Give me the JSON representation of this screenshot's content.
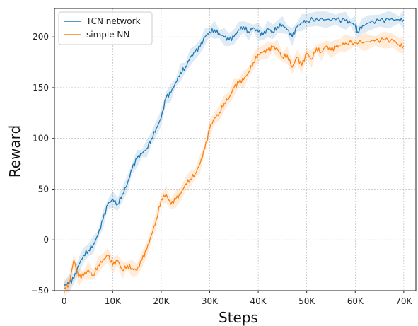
{
  "chart_data": {
    "type": "line",
    "xlabel": "Steps",
    "ylabel": "Reward",
    "xlim": [
      -2000,
      72500
    ],
    "ylim": [
      -50,
      228
    ],
    "xticks": [
      0,
      10000,
      20000,
      30000,
      40000,
      50000,
      60000,
      70000
    ],
    "xtick_labels": [
      "0",
      "10K",
      "20K",
      "30K",
      "40K",
      "50K",
      "60K",
      "70K"
    ],
    "yticks": [
      -50,
      0,
      50,
      100,
      150,
      200
    ],
    "ytick_labels": [
      "−50",
      "0",
      "50",
      "100",
      "150",
      "200"
    ],
    "grid": true,
    "legend_position": "upper-left",
    "series": [
      {
        "name": "TCN network",
        "color": "#1f77b4",
        "x": [
          0,
          1000,
          2000,
          3000,
          4000,
          5000,
          6000,
          7000,
          8000,
          9000,
          10000,
          11000,
          12000,
          13000,
          14000,
          15000,
          16000,
          17000,
          18000,
          19000,
          20000,
          21000,
          22000,
          23000,
          24000,
          25000,
          26000,
          27000,
          28000,
          29000,
          30000,
          31000,
          32000,
          33000,
          34000,
          35000,
          36000,
          37000,
          38000,
          39000,
          40000,
          41000,
          42000,
          43000,
          44000,
          45000,
          46000,
          47000,
          48000,
          49000,
          50000,
          52000,
          54000,
          56000,
          58000,
          59000,
          60000,
          60500,
          61500,
          63000,
          65000,
          67000,
          69000,
          70000
        ],
        "y": [
          -45,
          -43,
          -38,
          -25,
          -15,
          -10,
          -5,
          5,
          20,
          35,
          40,
          35,
          45,
          55,
          70,
          80,
          85,
          90,
          100,
          110,
          120,
          140,
          145,
          155,
          165,
          170,
          180,
          185,
          190,
          200,
          205,
          207,
          203,
          200,
          197,
          200,
          207,
          210,
          205,
          209,
          205,
          202,
          208,
          205,
          210,
          212,
          207,
          200,
          210,
          214,
          216,
          218,
          217,
          217,
          216,
          214,
          212,
          205,
          211,
          214,
          216,
          217,
          217,
          217
        ]
      },
      {
        "name": "simple NN",
        "color": "#ff7f0e",
        "x": [
          0,
          1000,
          2000,
          3000,
          4000,
          5000,
          6000,
          7000,
          8000,
          9000,
          10000,
          11000,
          12000,
          13000,
          14000,
          15000,
          16000,
          17000,
          18000,
          19000,
          20000,
          21000,
          22000,
          23000,
          24000,
          25000,
          26000,
          27000,
          28000,
          29000,
          30000,
          31000,
          32000,
          33000,
          34000,
          35000,
          36000,
          37000,
          38000,
          39000,
          40000,
          41000,
          42000,
          43000,
          44000,
          45000,
          46000,
          47000,
          48000,
          49000,
          50000,
          51000,
          52000,
          53000,
          54000,
          55000,
          56000,
          57000,
          58000,
          60000,
          62000,
          64000,
          66000,
          68000,
          69000,
          70000
        ],
        "y": [
          -47,
          -44,
          -20,
          -37,
          -35,
          -30,
          -35,
          -25,
          -20,
          -15,
          -25,
          -20,
          -30,
          -25,
          -28,
          -30,
          -20,
          -10,
          5,
          20,
          40,
          45,
          35,
          40,
          45,
          55,
          60,
          65,
          75,
          90,
          110,
          120,
          125,
          135,
          140,
          150,
          155,
          158,
          165,
          175,
          183,
          185,
          187,
          190,
          188,
          180,
          182,
          170,
          180,
          172,
          184,
          178,
          189,
          185,
          191,
          187,
          190,
          192,
          194,
          195,
          195,
          196,
          197,
          196,
          192,
          191
        ]
      }
    ]
  }
}
